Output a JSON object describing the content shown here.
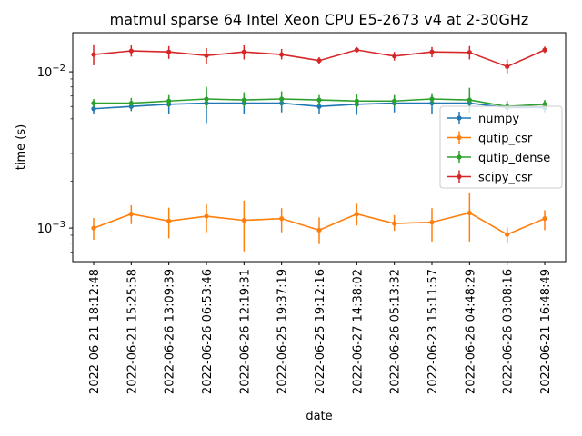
{
  "chart_data": {
    "type": "line",
    "title": "matmul sparse 64 Intel Xeon CPU E5-2673 v4 at 2-30GHz",
    "xlabel": "date",
    "ylabel": "time (s)",
    "yscale": "log",
    "ylim": [
      0.00061,
      0.0178
    ],
    "grid": false,
    "legend_position": "center-right",
    "x": [
      "2022-06-21 18:12:48",
      "2022-06-21 15:25:58",
      "2022-06-26 13:09:39",
      "2022-06-26 06:53:46",
      "2022-06-26 12:19:31",
      "2022-06-25 19:37:19",
      "2022-06-25 19:12:16",
      "2022-06-27 14:38:02",
      "2022-06-26 05:13:32",
      "2022-06-23 15:11:57",
      "2022-06-26 04:48:29",
      "2022-06-26 03:08:16",
      "2022-06-21 16:48:49"
    ],
    "y_ticks": [
      {
        "value": 0.001,
        "base": "10",
        "exp": "−3"
      },
      {
        "value": 0.01,
        "base": "10",
        "exp": "−2"
      }
    ],
    "series": [
      {
        "name": "numpy",
        "color": "#1f77b4",
        "values": [
          0.0058,
          0.006,
          0.0062,
          0.0063,
          0.0063,
          0.0063,
          0.006,
          0.0062,
          0.0063,
          0.0063,
          0.0063,
          0.0059,
          0.0059
        ],
        "err_low": [
          0.0054,
          0.0056,
          0.0054,
          0.0047,
          0.0054,
          0.0055,
          0.0054,
          0.0053,
          0.0055,
          0.0054,
          0.0055,
          0.0055,
          0.0055
        ],
        "err_high": [
          0.0063,
          0.0065,
          0.0069,
          0.0076,
          0.0071,
          0.007,
          0.0066,
          0.007,
          0.007,
          0.0071,
          0.0071,
          0.0065,
          0.0065
        ]
      },
      {
        "name": "qutip_csr",
        "color": "#ff7f0e",
        "values": [
          0.001,
          0.00123,
          0.00111,
          0.00119,
          0.00112,
          0.00115,
          0.00097,
          0.00123,
          0.00107,
          0.00109,
          0.00125,
          0.00091,
          0.00115
        ],
        "err_low": [
          0.00084,
          0.00106,
          0.00086,
          0.00094,
          0.00071,
          0.00094,
          0.00079,
          0.00104,
          0.00096,
          0.00082,
          0.00082,
          0.0008,
          0.00097
        ],
        "err_high": [
          0.00116,
          0.0014,
          0.00135,
          0.00142,
          0.0015,
          0.00134,
          0.00117,
          0.00143,
          0.00121,
          0.00134,
          0.00169,
          0.00101,
          0.0013
        ]
      },
      {
        "name": "qutip_dense",
        "color": "#2ca02c",
        "values": [
          0.0063,
          0.0063,
          0.0065,
          0.0067,
          0.0066,
          0.0067,
          0.0066,
          0.0065,
          0.0065,
          0.0067,
          0.0066,
          0.006,
          0.0062
        ],
        "err_low": [
          0.0059,
          0.0059,
          0.006,
          0.0058,
          0.006,
          0.006,
          0.0061,
          0.0059,
          0.006,
          0.0062,
          0.0055,
          0.0057,
          0.0058
        ],
        "err_high": [
          0.0067,
          0.0068,
          0.0071,
          0.008,
          0.0074,
          0.0075,
          0.0071,
          0.0072,
          0.0071,
          0.0073,
          0.0079,
          0.0064,
          0.0066
        ]
      },
      {
        "name": "scipy_csr",
        "color": "#d62728",
        "values": [
          0.0129,
          0.0136,
          0.0134,
          0.0127,
          0.0134,
          0.0129,
          0.0118,
          0.0138,
          0.0126,
          0.0134,
          0.0133,
          0.0108,
          0.0138
        ],
        "err_low": [
          0.011,
          0.0125,
          0.0121,
          0.0113,
          0.012,
          0.012,
          0.0112,
          0.0133,
          0.0118,
          0.0124,
          0.012,
          0.0098,
          0.0132
        ],
        "err_high": [
          0.015,
          0.0148,
          0.0146,
          0.0142,
          0.0149,
          0.014,
          0.0124,
          0.0144,
          0.0134,
          0.0144,
          0.0146,
          0.012,
          0.0145
        ]
      }
    ]
  }
}
